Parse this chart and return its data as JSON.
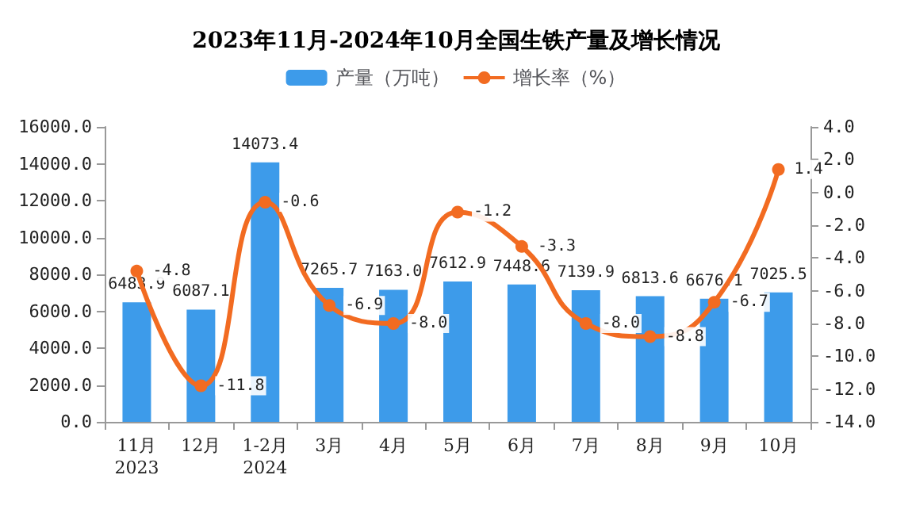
{
  "chart_data": {
    "type": "bar",
    "title": "2023年11月-2024年10月全国生铁产量及增长情况",
    "categories": [
      "11月\n2023",
      "12月",
      "1-2月\n2024",
      "3月",
      "4月",
      "5月",
      "6月",
      "7月",
      "8月",
      "9月",
      "10月"
    ],
    "series": [
      {
        "name": "产量（万吨）",
        "color": "#3d9bea",
        "values": [
          6483.9,
          6087.1,
          14073.4,
          7265.7,
          7163.0,
          7612.9,
          7448.6,
          7139.9,
          6813.6,
          6676.1,
          7025.5
        ],
        "value_labels": [
          "6483.9",
          "6087.1",
          "14073.4",
          "7265.7",
          "7163.0",
          "7612.9",
          "7448.6",
          "7139.9",
          "6813.6",
          "6676.1",
          "7025.5"
        ]
      },
      {
        "name": "增长率（%）",
        "type": "line",
        "axis": "y2",
        "color": "#f26b21",
        "values": [
          -4.8,
          -11.8,
          -0.6,
          -6.9,
          -8.0,
          -1.2,
          -3.3,
          -8.0,
          -8.8,
          -6.7,
          1.4
        ],
        "value_labels": [
          "-4.8",
          "-11.8",
          "-0.6",
          "-6.9",
          "-8.0",
          "-1.2",
          "-3.3",
          "-8.0",
          "-8.8",
          "-6.7",
          "1.4"
        ]
      }
    ],
    "ylim": [
      0,
      16000
    ],
    "yticks": [
      {
        "value": 0,
        "label": "0.0"
      },
      {
        "value": 2000,
        "label": "2000.0"
      },
      {
        "value": 4000,
        "label": "4000.0"
      },
      {
        "value": 6000,
        "label": "6000.0"
      },
      {
        "value": 8000,
        "label": "8000.0"
      },
      {
        "value": 10000,
        "label": "10000.0"
      },
      {
        "value": 12000,
        "label": "12000.0"
      },
      {
        "value": 14000,
        "label": "14000.0"
      },
      {
        "value": 16000,
        "label": "16000.0"
      }
    ],
    "y2lim": [
      -14,
      4
    ],
    "y2ticks": [
      {
        "value": -14,
        "label": "-14.0"
      },
      {
        "value": -12,
        "label": "-12.0"
      },
      {
        "value": -10,
        "label": "-10.0"
      },
      {
        "value": -8,
        "label": "-8.0"
      },
      {
        "value": -6,
        "label": "-6.0"
      },
      {
        "value": -4,
        "label": "-4.0"
      },
      {
        "value": -2,
        "label": "-2.0"
      },
      {
        "value": 0,
        "label": "0.0"
      },
      {
        "value": 2,
        "label": "2.0"
      },
      {
        "value": 4,
        "label": "4.0"
      }
    ],
    "legend": "top",
    "grid": false,
    "marker": "circle",
    "line_style": "solid"
  }
}
